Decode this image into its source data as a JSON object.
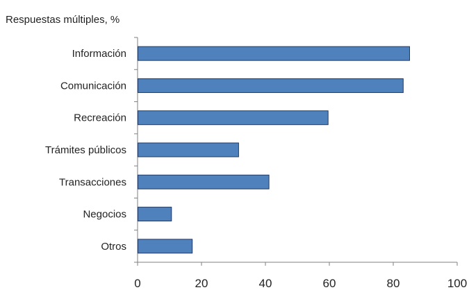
{
  "chart_data": {
    "type": "bar",
    "orientation": "horizontal",
    "subtitle": "Respuestas múltiples, %",
    "categories": [
      "Información",
      "Comunicación",
      "Recreación",
      "Trámites públicos",
      "Transacciones",
      "Negocios",
      "Otros"
    ],
    "values": [
      85,
      83,
      59.5,
      31.5,
      41,
      10.5,
      17
    ],
    "xlim": [
      0,
      100
    ],
    "xticks": [
      0,
      20,
      40,
      60,
      80,
      100
    ],
    "grid": false,
    "bar_color": "#4f81bd",
    "bar_edge_color": "#1f3864"
  }
}
